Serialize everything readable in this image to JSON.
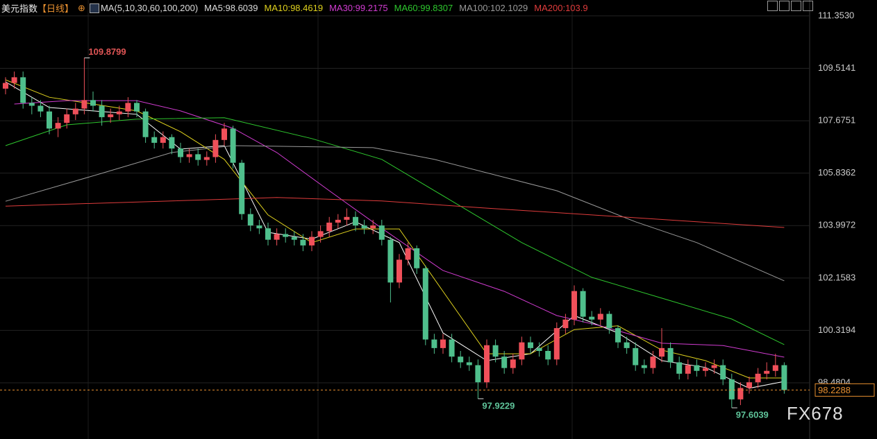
{
  "chart_data": {
    "type": "candlestick",
    "title": "美元指数",
    "period": "【日线】",
    "ma_label": "MA(5,10,30,60,100,200)",
    "up_color": "#f0505a",
    "down_color": "#4fbf8c",
    "ylim": [
      96.51,
      111.91
    ],
    "yticks": [
      {
        "value": 111.353,
        "label": "111.3530"
      },
      109.5141,
      107.6751,
      105.8362,
      103.9972,
      102.1583,
      100.3194,
      98.4804
    ],
    "grid": true,
    "open": [
      108.8,
      109.0,
      109.2,
      108.3,
      108.2,
      108.0,
      107.4,
      107.6,
      107.9,
      108.1,
      108.4,
      108.2,
      107.8,
      107.9,
      108.0,
      108.3,
      108.0,
      107.1,
      106.9,
      107.1,
      106.7,
      106.4,
      106.5,
      106.3,
      106.4,
      107.0,
      107.4,
      106.2,
      104.4,
      104.0,
      103.9,
      103.5,
      103.7,
      103.6,
      103.5,
      103.3,
      103.6,
      103.8,
      104.1,
      104.2,
      104.3,
      104.0,
      103.9,
      104.0,
      103.5,
      102.0,
      102.8,
      103.2,
      102.5,
      100.0,
      99.7,
      100.0,
      99.4,
      99.2,
      99.1,
      98.5,
      99.8,
      99.4,
      99.0,
      99.3,
      99.9,
      99.7,
      99.6,
      99.3,
      100.4,
      100.7,
      101.7,
      100.8,
      100.7,
      100.9,
      100.4,
      99.9,
      99.7,
      99.1,
      99.0,
      99.4,
      99.7,
      99.2,
      98.8,
      99.1,
      98.9,
      99.0,
      99.1,
      98.6,
      97.9,
      98.3,
      98.5,
      98.8,
      98.9,
      99.1
    ],
    "high": [
      109.2,
      109.4,
      109.4,
      108.5,
      108.4,
      108.2,
      107.8,
      108.1,
      108.3,
      109.8799,
      108.7,
      108.4,
      108.1,
      108.2,
      108.5,
      108.4,
      108.1,
      107.3,
      107.3,
      107.2,
      106.9,
      106.7,
      106.7,
      106.6,
      107.2,
      107.6,
      107.5,
      106.3,
      104.6,
      104.2,
      104.1,
      103.9,
      103.9,
      103.8,
      103.7,
      103.8,
      104.0,
      104.3,
      104.4,
      104.6,
      104.5,
      104.2,
      104.2,
      104.2,
      103.6,
      103.0,
      103.4,
      103.3,
      102.6,
      100.2,
      100.2,
      100.2,
      99.6,
      99.4,
      99.3,
      100.0,
      100.0,
      99.6,
      99.5,
      100.1,
      100.1,
      99.9,
      99.8,
      100.6,
      100.9,
      101.9,
      101.8,
      101.0,
      101.1,
      101.0,
      100.5,
      100.1,
      99.9,
      99.3,
      99.6,
      100.4,
      99.9,
      99.4,
      99.3,
      99.3,
      99.2,
      99.3,
      99.3,
      98.8,
      98.5,
      98.7,
      99.0,
      99.2,
      99.5,
      99.2
    ],
    "low": [
      108.6,
      108.8,
      108.1,
      107.9,
      107.8,
      107.2,
      107.1,
      107.4,
      107.7,
      107.9,
      108.0,
      107.5,
      107.6,
      107.7,
      107.8,
      107.8,
      106.9,
      106.7,
      106.7,
      106.5,
      106.2,
      106.2,
      106.1,
      106.1,
      106.2,
      106.8,
      106.0,
      104.2,
      103.8,
      103.7,
      103.3,
      103.3,
      103.4,
      103.3,
      103.1,
      103.1,
      103.4,
      103.6,
      103.9,
      104.0,
      103.8,
      103.7,
      103.7,
      103.3,
      101.3,
      101.8,
      102.6,
      102.3,
      99.8,
      99.5,
      99.5,
      99.2,
      99.0,
      98.9,
      97.9229,
      98.3,
      99.2,
      98.8,
      98.8,
      99.1,
      99.5,
      99.4,
      99.1,
      99.1,
      100.2,
      100.5,
      100.6,
      100.5,
      100.5,
      100.2,
      99.7,
      99.5,
      98.9,
      98.8,
      98.8,
      99.2,
      99.0,
      98.6,
      98.6,
      98.7,
      98.7,
      98.8,
      98.4,
      97.6039,
      97.7,
      98.1,
      98.3,
      98.6,
      98.7,
      98.1
    ],
    "close": [
      109.0,
      109.2,
      108.3,
      108.2,
      108.0,
      107.4,
      107.6,
      107.9,
      108.1,
      108.4,
      108.2,
      107.8,
      107.9,
      108.0,
      108.3,
      108.0,
      107.1,
      106.9,
      107.1,
      106.7,
      106.4,
      106.5,
      106.3,
      106.4,
      107.0,
      107.4,
      106.2,
      104.4,
      104.0,
      103.9,
      103.5,
      103.7,
      103.6,
      103.5,
      103.3,
      103.6,
      103.8,
      104.1,
      104.2,
      104.3,
      104.0,
      103.9,
      104.0,
      103.5,
      102.0,
      102.8,
      103.2,
      102.5,
      100.0,
      99.7,
      100.0,
      99.4,
      99.2,
      99.1,
      98.5,
      99.8,
      99.4,
      99.0,
      99.3,
      99.9,
      99.7,
      99.6,
      99.3,
      100.4,
      100.7,
      101.7,
      100.8,
      100.7,
      100.9,
      100.4,
      99.9,
      99.7,
      99.1,
      99.0,
      99.4,
      99.7,
      99.2,
      98.8,
      99.1,
      98.9,
      99.0,
      99.1,
      98.6,
      97.9,
      98.3,
      98.5,
      98.8,
      98.9,
      99.1,
      98.2288
    ],
    "series": [
      {
        "name": "MA5:98.6039",
        "color": "#ffffff",
        "x": [
          0,
          5,
          10,
          15,
          20,
          25,
          30,
          35,
          40,
          45,
          50,
          55,
          60,
          65,
          70,
          75,
          80,
          85,
          89
        ],
        "values": [
          109.04,
          108.14,
          108.02,
          107.9,
          106.68,
          106.8,
          103.76,
          103.52,
          104.13,
          103.4,
          100.23,
          99.26,
          99.5,
          100.84,
          100.23,
          99.26,
          99.02,
          98.29,
          98.53
        ]
      },
      {
        "name": "MA10:98.4619",
        "color": "#e0d21e",
        "x": [
          0,
          5,
          10,
          15,
          20,
          25,
          30,
          35,
          40,
          45,
          50,
          55,
          60,
          65,
          70,
          75,
          80,
          85,
          89
        ],
        "values": [
          109.11,
          108.5,
          108.26,
          108.02,
          107.29,
          106.32,
          104.37,
          103.4,
          103.88,
          103.88,
          101.69,
          99.5,
          99.5,
          100.35,
          100.48,
          99.63,
          99.26,
          98.65,
          98.65
        ]
      },
      {
        "name": "MA30:99.2175",
        "color": "#d23cd2",
        "x": [
          1,
          7,
          15,
          20,
          26,
          31,
          37,
          43,
          50,
          57,
          63,
          68,
          75,
          82,
          89
        ],
        "values": [
          108.26,
          108.38,
          108.38,
          108.02,
          107.41,
          106.56,
          105.22,
          103.9,
          102.42,
          101.69,
          100.84,
          100.48,
          99.87,
          99.79,
          99.38
        ]
      },
      {
        "name": "MA60:99.8307",
        "color": "#2ec82e",
        "x": [
          0,
          7,
          15,
          25,
          35,
          43,
          51,
          59,
          67,
          75,
          83,
          89
        ],
        "values": [
          106.8,
          107.53,
          107.73,
          107.78,
          107.05,
          106.32,
          104.86,
          103.4,
          102.18,
          101.45,
          100.72,
          99.82
        ]
      },
      {
        "name": "MA100:102.1029",
        "color": "#9a9a9a",
        "x": [
          0,
          11,
          19,
          26,
          42,
          49,
          63,
          72,
          79,
          89
        ],
        "values": [
          104.85,
          105.83,
          106.56,
          106.8,
          106.73,
          106.32,
          105.22,
          104.13,
          103.4,
          102.06
        ]
      },
      {
        "name": "MA200:103.9",
        "color": "#e03c3c",
        "x": [
          0,
          23,
          31,
          43,
          55,
          67,
          79,
          89
        ],
        "values": [
          104.68,
          104.9,
          104.98,
          104.86,
          104.61,
          104.37,
          104.13,
          103.93
        ]
      }
    ],
    "watermark": "FX678"
  }
}
